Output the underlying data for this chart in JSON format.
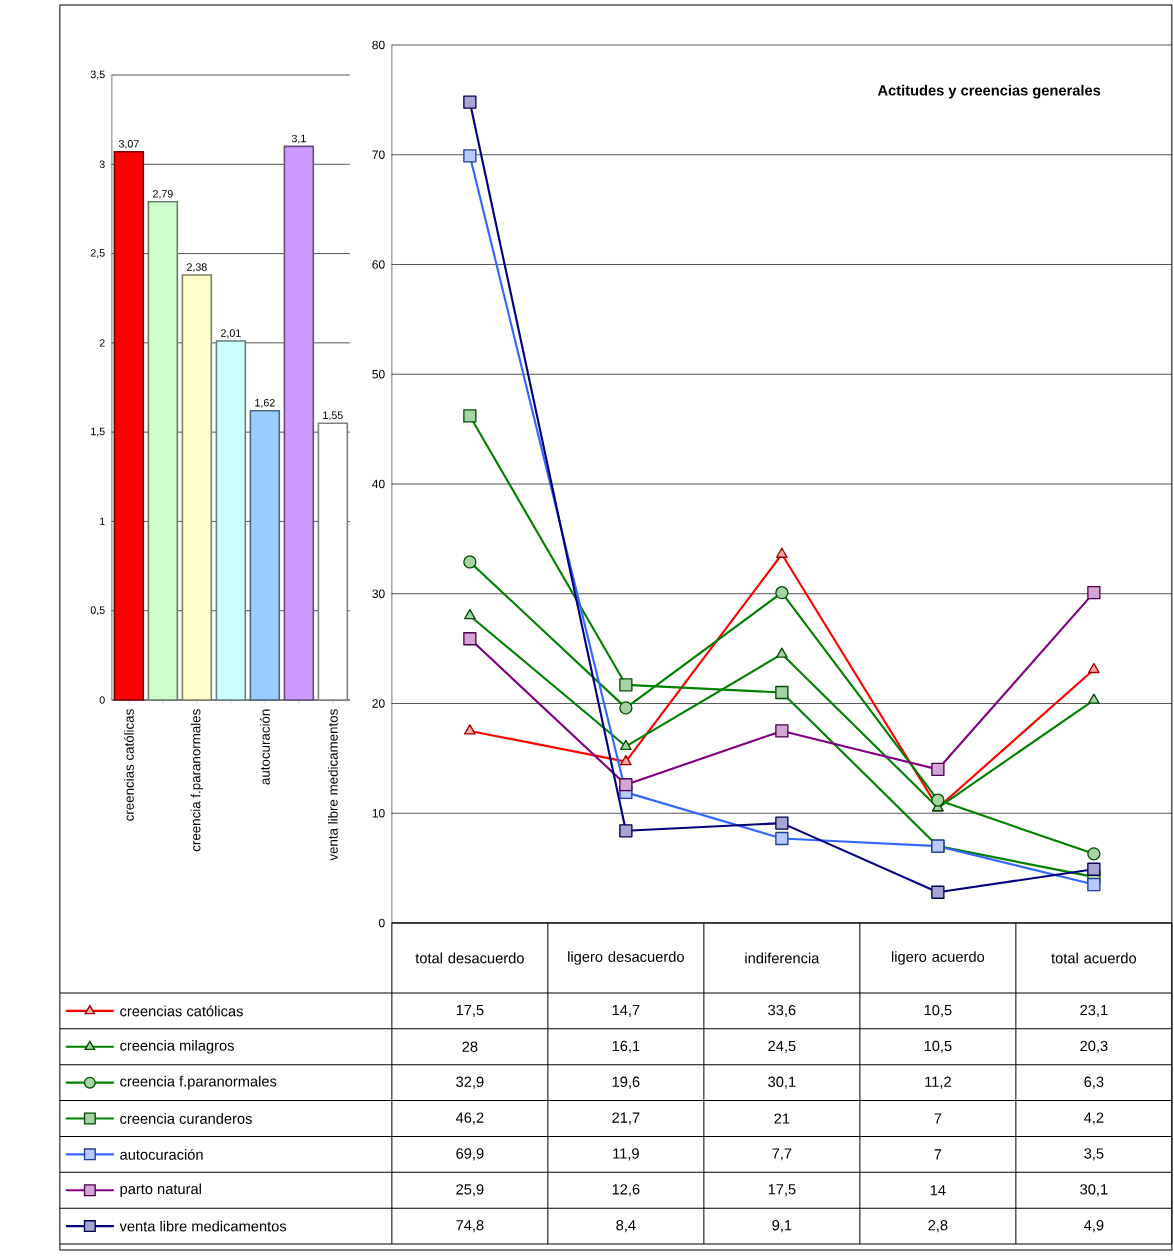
{
  "chart_data": [
    {
      "type": "bar",
      "categories": [
        "creencias católicas",
        null,
        "creencia f.paranormales",
        null,
        "autocuración",
        null,
        "venta libre medicamentos"
      ],
      "values": [
        3.07,
        2.79,
        2.38,
        2.01,
        1.62,
        3.1,
        1.55
      ],
      "colors": [
        "#ff0000",
        "#ccffcc",
        "#ffffcc",
        "#ccffff",
        "#99ccff",
        "#cc99ff",
        "#ffffff"
      ],
      "value_labels": [
        "3,07",
        "2,79",
        "2,38",
        "2,01",
        "1,62",
        "3,1",
        "1,55"
      ],
      "ylim": [
        0,
        3.5
      ],
      "yticks": [
        0,
        {
          "value": 0.5,
          "label": "0,5"
        },
        1,
        {
          "value": 1.5,
          "label": "1,5"
        },
        2,
        {
          "value": 2.5,
          "label": "2,5"
        },
        3,
        {
          "value": 3.5,
          "label": "3,5"
        }
      ],
      "grid": "y"
    },
    {
      "type": "line",
      "title": "Actitudes y creencias generales",
      "categories": [
        "total desacuerdo",
        "ligero desacuerdo",
        "indiferencia",
        "ligero acuerdo",
        "total acuerdo"
      ],
      "series": [
        {
          "name": "creencias católicas",
          "color": "#ff0000",
          "marker": "triangle",
          "values": [
            17.5,
            14.7,
            33.6,
            10.5,
            23.1
          ],
          "value_labels": [
            "17,5",
            "14,7",
            "33,6",
            "10,5",
            "23,1"
          ]
        },
        {
          "name": "creencia milagros",
          "color": "#008000",
          "marker": "triangle",
          "values": [
            28,
            16.1,
            24.5,
            10.5,
            20.3
          ],
          "value_labels": [
            "28",
            "16,1",
            "24,5",
            "10,5",
            "20,3"
          ]
        },
        {
          "name": "creencia f.paranormales",
          "color": "#008000",
          "marker": "circle",
          "values": [
            32.9,
            19.6,
            30.1,
            11.2,
            6.3
          ],
          "value_labels": [
            "32,9",
            "19,6",
            "30,1",
            "11,2",
            "6,3"
          ]
        },
        {
          "name": "creencia curanderos",
          "color": "#008000",
          "marker": "square",
          "values": [
            46.2,
            21.7,
            21,
            7,
            4.2
          ],
          "value_labels": [
            "46,2",
            "21,7",
            "21",
            "7",
            "4,2"
          ]
        },
        {
          "name": "autocuración",
          "color": "#3366ff",
          "marker": "square",
          "values": [
            69.9,
            11.9,
            7.7,
            7,
            3.5
          ],
          "value_labels": [
            "69,9",
            "11,9",
            "7,7",
            "7",
            "3,5"
          ]
        },
        {
          "name": "parto natural",
          "color": "#800080",
          "marker": "square",
          "values": [
            25.9,
            12.6,
            17.5,
            14,
            30.1
          ],
          "value_labels": [
            "25,9",
            "12,6",
            "17,5",
            "14",
            "30,1"
          ]
        },
        {
          "name": "venta libre medicamentos",
          "color": "#000080",
          "marker": "square",
          "values": [
            74.8,
            8.4,
            9.1,
            2.8,
            4.9
          ],
          "value_labels": [
            "74,8",
            "8,4",
            "9,1",
            "2,8",
            "4,9"
          ]
        }
      ],
      "ylim": [
        0,
        80
      ],
      "yticks": [
        0,
        10,
        20,
        30,
        40,
        50,
        60,
        70,
        80
      ],
      "grid": "y",
      "legend": "bottom left"
    }
  ]
}
